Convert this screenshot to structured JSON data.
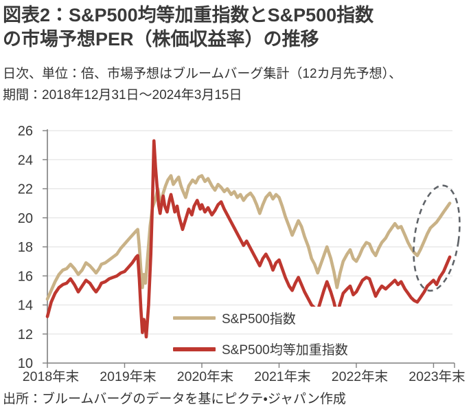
{
  "header": {
    "title_line1": "図表2：S&P500均等加重指数とS&P500指数",
    "title_line2": "の市場予想PER（株価収益率）の推移",
    "subtitle_line1": "日次、単位：倍、市場予想はブルームバーグ集計（12カ月先予想）、",
    "subtitle_line2": "期間：2018年12月31日～2024年3月15日"
  },
  "footer": {
    "source": "出所：ブルームバーグのデータを基にピクテ・ジャパン作成"
  },
  "chart_data": {
    "type": "line",
    "title": "S&P500均等加重指数とS&P500指数の市場予想PER（株価収益率）の推移",
    "unit": "倍",
    "frequency": "日次",
    "period_label": "2018年12月31日～2024年3月15日",
    "xlabel": "",
    "ylabel": "",
    "ylim": [
      10,
      26
    ],
    "xlim_years": [
      0,
      5.245
    ],
    "y_ticks": [
      10,
      12,
      14,
      16,
      18,
      20,
      22,
      24,
      26
    ],
    "x_ticks": [
      {
        "t": 0,
        "label": "2018年末"
      },
      {
        "t": 1,
        "label": "2019年末"
      },
      {
        "t": 2,
        "label": "2020年末"
      },
      {
        "t": 3,
        "label": "2021年末"
      },
      {
        "t": 4,
        "label": "2022年末"
      },
      {
        "t": 5,
        "label": "2023年末"
      }
    ],
    "grid": true,
    "legend_position": "inside-bottom-center",
    "colors": {
      "sp500": "#C9B287",
      "sp500_equal_weight": "#BE372F",
      "grid": "#E4E4E4",
      "axis": "#7F7F7F",
      "annotation": "#5F6368",
      "text": "#3A3A3A"
    },
    "annotation": {
      "shape": "dashed-ellipse",
      "center_t": 5.04,
      "center_value": 18.6,
      "radius_t": 0.285,
      "radius_value": 3.65,
      "rotation_deg": 8
    },
    "series": [
      {
        "name": "S&P500指数",
        "color": "#C9B287",
        "points": [
          [
            0,
            14.4
          ],
          [
            0.05,
            15.0
          ],
          [
            0.1,
            15.6
          ],
          [
            0.15,
            16.1
          ],
          [
            0.2,
            16.4
          ],
          [
            0.25,
            16.5
          ],
          [
            0.3,
            16.8
          ],
          [
            0.35,
            16.5
          ],
          [
            0.4,
            16.1
          ],
          [
            0.45,
            16.4
          ],
          [
            0.5,
            16.9
          ],
          [
            0.55,
            16.7
          ],
          [
            0.6,
            16.4
          ],
          [
            0.63,
            16.2
          ],
          [
            0.67,
            16.5
          ],
          [
            0.7,
            16.8
          ],
          [
            0.75,
            16.9
          ],
          [
            0.8,
            17.1
          ],
          [
            0.85,
            17.3
          ],
          [
            0.9,
            17.5
          ],
          [
            0.95,
            17.9
          ],
          [
            1.0,
            18.2
          ],
          [
            1.05,
            18.5
          ],
          [
            1.1,
            18.8
          ],
          [
            1.15,
            19.1
          ],
          [
            1.17,
            19.2
          ],
          [
            1.19,
            18.0
          ],
          [
            1.21,
            16.5
          ],
          [
            1.23,
            15.2
          ],
          [
            1.25,
            16.1
          ],
          [
            1.27,
            15.5
          ],
          [
            1.3,
            17.4
          ],
          [
            1.33,
            19.4
          ],
          [
            1.36,
            20.7
          ],
          [
            1.4,
            21.3
          ],
          [
            1.43,
            22.0
          ],
          [
            1.45,
            21.4
          ],
          [
            1.48,
            21.1
          ],
          [
            1.5,
            21.7
          ],
          [
            1.53,
            22.2
          ],
          [
            1.56,
            22.6
          ],
          [
            1.6,
            22.9
          ],
          [
            1.63,
            22.3
          ],
          [
            1.67,
            22.6
          ],
          [
            1.7,
            22.8
          ],
          [
            1.73,
            22.2
          ],
          [
            1.75,
            21.9
          ],
          [
            1.79,
            21.4
          ],
          [
            1.83,
            22.2
          ],
          [
            1.88,
            22.6
          ],
          [
            1.92,
            22.4
          ],
          [
            1.96,
            22.8
          ],
          [
            2.0,
            22.9
          ],
          [
            2.04,
            22.5
          ],
          [
            2.08,
            22.7
          ],
          [
            2.13,
            22.2
          ],
          [
            2.17,
            21.9
          ],
          [
            2.21,
            22.3
          ],
          [
            2.25,
            22.1
          ],
          [
            2.29,
            21.8
          ],
          [
            2.33,
            22.0
          ],
          [
            2.38,
            21.6
          ],
          [
            2.42,
            21.8
          ],
          [
            2.46,
            21.4
          ],
          [
            2.5,
            21.6
          ],
          [
            2.54,
            21.2
          ],
          [
            2.58,
            21.5
          ],
          [
            2.63,
            21.7
          ],
          [
            2.67,
            21.4
          ],
          [
            2.71,
            20.9
          ],
          [
            2.75,
            20.3
          ],
          [
            2.79,
            20.9
          ],
          [
            2.83,
            21.4
          ],
          [
            2.88,
            21.7
          ],
          [
            2.92,
            21.3
          ],
          [
            2.96,
            21.6
          ],
          [
            3.0,
            21.4
          ],
          [
            3.04,
            20.8
          ],
          [
            3.08,
            20.1
          ],
          [
            3.13,
            19.4
          ],
          [
            3.17,
            18.8
          ],
          [
            3.21,
            19.3
          ],
          [
            3.25,
            19.8
          ],
          [
            3.29,
            19.4
          ],
          [
            3.33,
            18.7
          ],
          [
            3.38,
            18.0
          ],
          [
            3.42,
            17.2
          ],
          [
            3.46,
            16.8
          ],
          [
            3.5,
            16.2
          ],
          [
            3.54,
            16.8
          ],
          [
            3.58,
            17.4
          ],
          [
            3.62,
            18.0
          ],
          [
            3.67,
            17.2
          ],
          [
            3.71,
            16.3
          ],
          [
            3.75,
            15.2
          ],
          [
            3.79,
            16.2
          ],
          [
            3.83,
            17.0
          ],
          [
            3.88,
            17.5
          ],
          [
            3.92,
            17.8
          ],
          [
            3.96,
            17.2
          ],
          [
            4.0,
            17.0
          ],
          [
            4.04,
            17.4
          ],
          [
            4.08,
            17.9
          ],
          [
            4.13,
            18.3
          ],
          [
            4.17,
            18.2
          ],
          [
            4.21,
            17.7
          ],
          [
            4.25,
            17.4
          ],
          [
            4.29,
            17.9
          ],
          [
            4.33,
            18.3
          ],
          [
            4.38,
            18.6
          ],
          [
            4.42,
            19.0
          ],
          [
            4.46,
            19.3
          ],
          [
            4.5,
            19.6
          ],
          [
            4.54,
            19.3
          ],
          [
            4.58,
            19.4
          ],
          [
            4.63,
            18.8
          ],
          [
            4.67,
            18.3
          ],
          [
            4.71,
            17.9
          ],
          [
            4.75,
            17.6
          ],
          [
            4.79,
            17.4
          ],
          [
            4.83,
            17.8
          ],
          [
            4.88,
            18.4
          ],
          [
            4.92,
            18.9
          ],
          [
            4.96,
            19.3
          ],
          [
            5.0,
            19.5
          ],
          [
            5.04,
            19.7
          ],
          [
            5.08,
            20.0
          ],
          [
            5.13,
            20.4
          ],
          [
            5.17,
            20.7
          ],
          [
            5.21,
            21.0
          ]
        ]
      },
      {
        "name": "S&P500均等加重指数",
        "color": "#BE372F",
        "points": [
          [
            0,
            13.2
          ],
          [
            0.05,
            14.2
          ],
          [
            0.1,
            14.8
          ],
          [
            0.15,
            15.2
          ],
          [
            0.2,
            15.4
          ],
          [
            0.25,
            15.5
          ],
          [
            0.3,
            15.8
          ],
          [
            0.35,
            15.4
          ],
          [
            0.4,
            14.9
          ],
          [
            0.45,
            15.3
          ],
          [
            0.5,
            15.7
          ],
          [
            0.55,
            15.5
          ],
          [
            0.6,
            15.1
          ],
          [
            0.63,
            14.9
          ],
          [
            0.67,
            15.2
          ],
          [
            0.7,
            15.5
          ],
          [
            0.75,
            15.6
          ],
          [
            0.8,
            15.8
          ],
          [
            0.85,
            15.9
          ],
          [
            0.9,
            16.0
          ],
          [
            0.95,
            16.2
          ],
          [
            1.0,
            16.3
          ],
          [
            1.05,
            16.6
          ],
          [
            1.1,
            16.9
          ],
          [
            1.15,
            17.3
          ],
          [
            1.17,
            17.4
          ],
          [
            1.19,
            15.8
          ],
          [
            1.21,
            13.8
          ],
          [
            1.23,
            12.1
          ],
          [
            1.25,
            13.0
          ],
          [
            1.27,
            12.4
          ],
          [
            1.28,
            11.8
          ],
          [
            1.31,
            14.0
          ],
          [
            1.34,
            17.5
          ],
          [
            1.36,
            21.0
          ],
          [
            1.38,
            25.3
          ],
          [
            1.4,
            23.5
          ],
          [
            1.42,
            22.2
          ],
          [
            1.44,
            20.9
          ],
          [
            1.46,
            20.3
          ],
          [
            1.48,
            21.0
          ],
          [
            1.5,
            21.5
          ],
          [
            1.52,
            20.8
          ],
          [
            1.55,
            20.4
          ],
          [
            1.58,
            21.2
          ],
          [
            1.6,
            21.6
          ],
          [
            1.63,
            20.9
          ],
          [
            1.65,
            20.4
          ],
          [
            1.68,
            20.8
          ],
          [
            1.7,
            20.2
          ],
          [
            1.73,
            19.6
          ],
          [
            1.75,
            19.2
          ],
          [
            1.79,
            19.9
          ],
          [
            1.83,
            20.6
          ],
          [
            1.87,
            20.2
          ],
          [
            1.9,
            20.8
          ],
          [
            1.94,
            21.2
          ],
          [
            1.98,
            20.6
          ],
          [
            2.0,
            20.9
          ],
          [
            2.04,
            20.4
          ],
          [
            2.08,
            20.7
          ],
          [
            2.13,
            20.2
          ],
          [
            2.17,
            20.5
          ],
          [
            2.21,
            20.9
          ],
          [
            2.25,
            21.1
          ],
          [
            2.29,
            20.6
          ],
          [
            2.33,
            20.2
          ],
          [
            2.38,
            19.7
          ],
          [
            2.42,
            19.3
          ],
          [
            2.46,
            18.9
          ],
          [
            2.5,
            18.5
          ],
          [
            2.54,
            18.1
          ],
          [
            2.58,
            18.4
          ],
          [
            2.63,
            17.9
          ],
          [
            2.67,
            17.5
          ],
          [
            2.71,
            17.1
          ],
          [
            2.75,
            16.7
          ],
          [
            2.79,
            17.2
          ],
          [
            2.83,
            17.5
          ],
          [
            2.88,
            17.0
          ],
          [
            2.92,
            16.4
          ],
          [
            2.96,
            16.9
          ],
          [
            3.0,
            17.1
          ],
          [
            3.04,
            16.5
          ],
          [
            3.08,
            15.9
          ],
          [
            3.13,
            15.3
          ],
          [
            3.17,
            15.0
          ],
          [
            3.21,
            15.5
          ],
          [
            3.25,
            15.9
          ],
          [
            3.29,
            15.4
          ],
          [
            3.33,
            14.9
          ],
          [
            3.38,
            14.4
          ],
          [
            3.42,
            14.0
          ],
          [
            3.46,
            13.8
          ],
          [
            3.5,
            13.6
          ],
          [
            3.54,
            14.3
          ],
          [
            3.58,
            15.0
          ],
          [
            3.62,
            15.6
          ],
          [
            3.67,
            14.9
          ],
          [
            3.71,
            14.2
          ],
          [
            3.75,
            13.3
          ],
          [
            3.79,
            14.1
          ],
          [
            3.83,
            14.8
          ],
          [
            3.88,
            15.1
          ],
          [
            3.92,
            15.3
          ],
          [
            3.96,
            14.7
          ],
          [
            4.0,
            14.9
          ],
          [
            4.04,
            15.3
          ],
          [
            4.08,
            15.7
          ],
          [
            4.13,
            15.9
          ],
          [
            4.17,
            15.8
          ],
          [
            4.21,
            15.2
          ],
          [
            4.25,
            14.6
          ],
          [
            4.29,
            15.0
          ],
          [
            4.33,
            15.3
          ],
          [
            4.38,
            15.1
          ],
          [
            4.42,
            15.3
          ],
          [
            4.46,
            15.5
          ],
          [
            4.5,
            15.7
          ],
          [
            4.54,
            15.4
          ],
          [
            4.58,
            15.6
          ],
          [
            4.63,
            15.1
          ],
          [
            4.67,
            14.8
          ],
          [
            4.71,
            14.5
          ],
          [
            4.75,
            14.3
          ],
          [
            4.79,
            14.2
          ],
          [
            4.83,
            14.5
          ],
          [
            4.88,
            14.9
          ],
          [
            4.92,
            15.3
          ],
          [
            4.96,
            15.5
          ],
          [
            5.0,
            15.7
          ],
          [
            5.04,
            15.4
          ],
          [
            5.08,
            15.9
          ],
          [
            5.13,
            16.3
          ],
          [
            5.17,
            16.8
          ],
          [
            5.21,
            17.3
          ]
        ]
      }
    ]
  }
}
